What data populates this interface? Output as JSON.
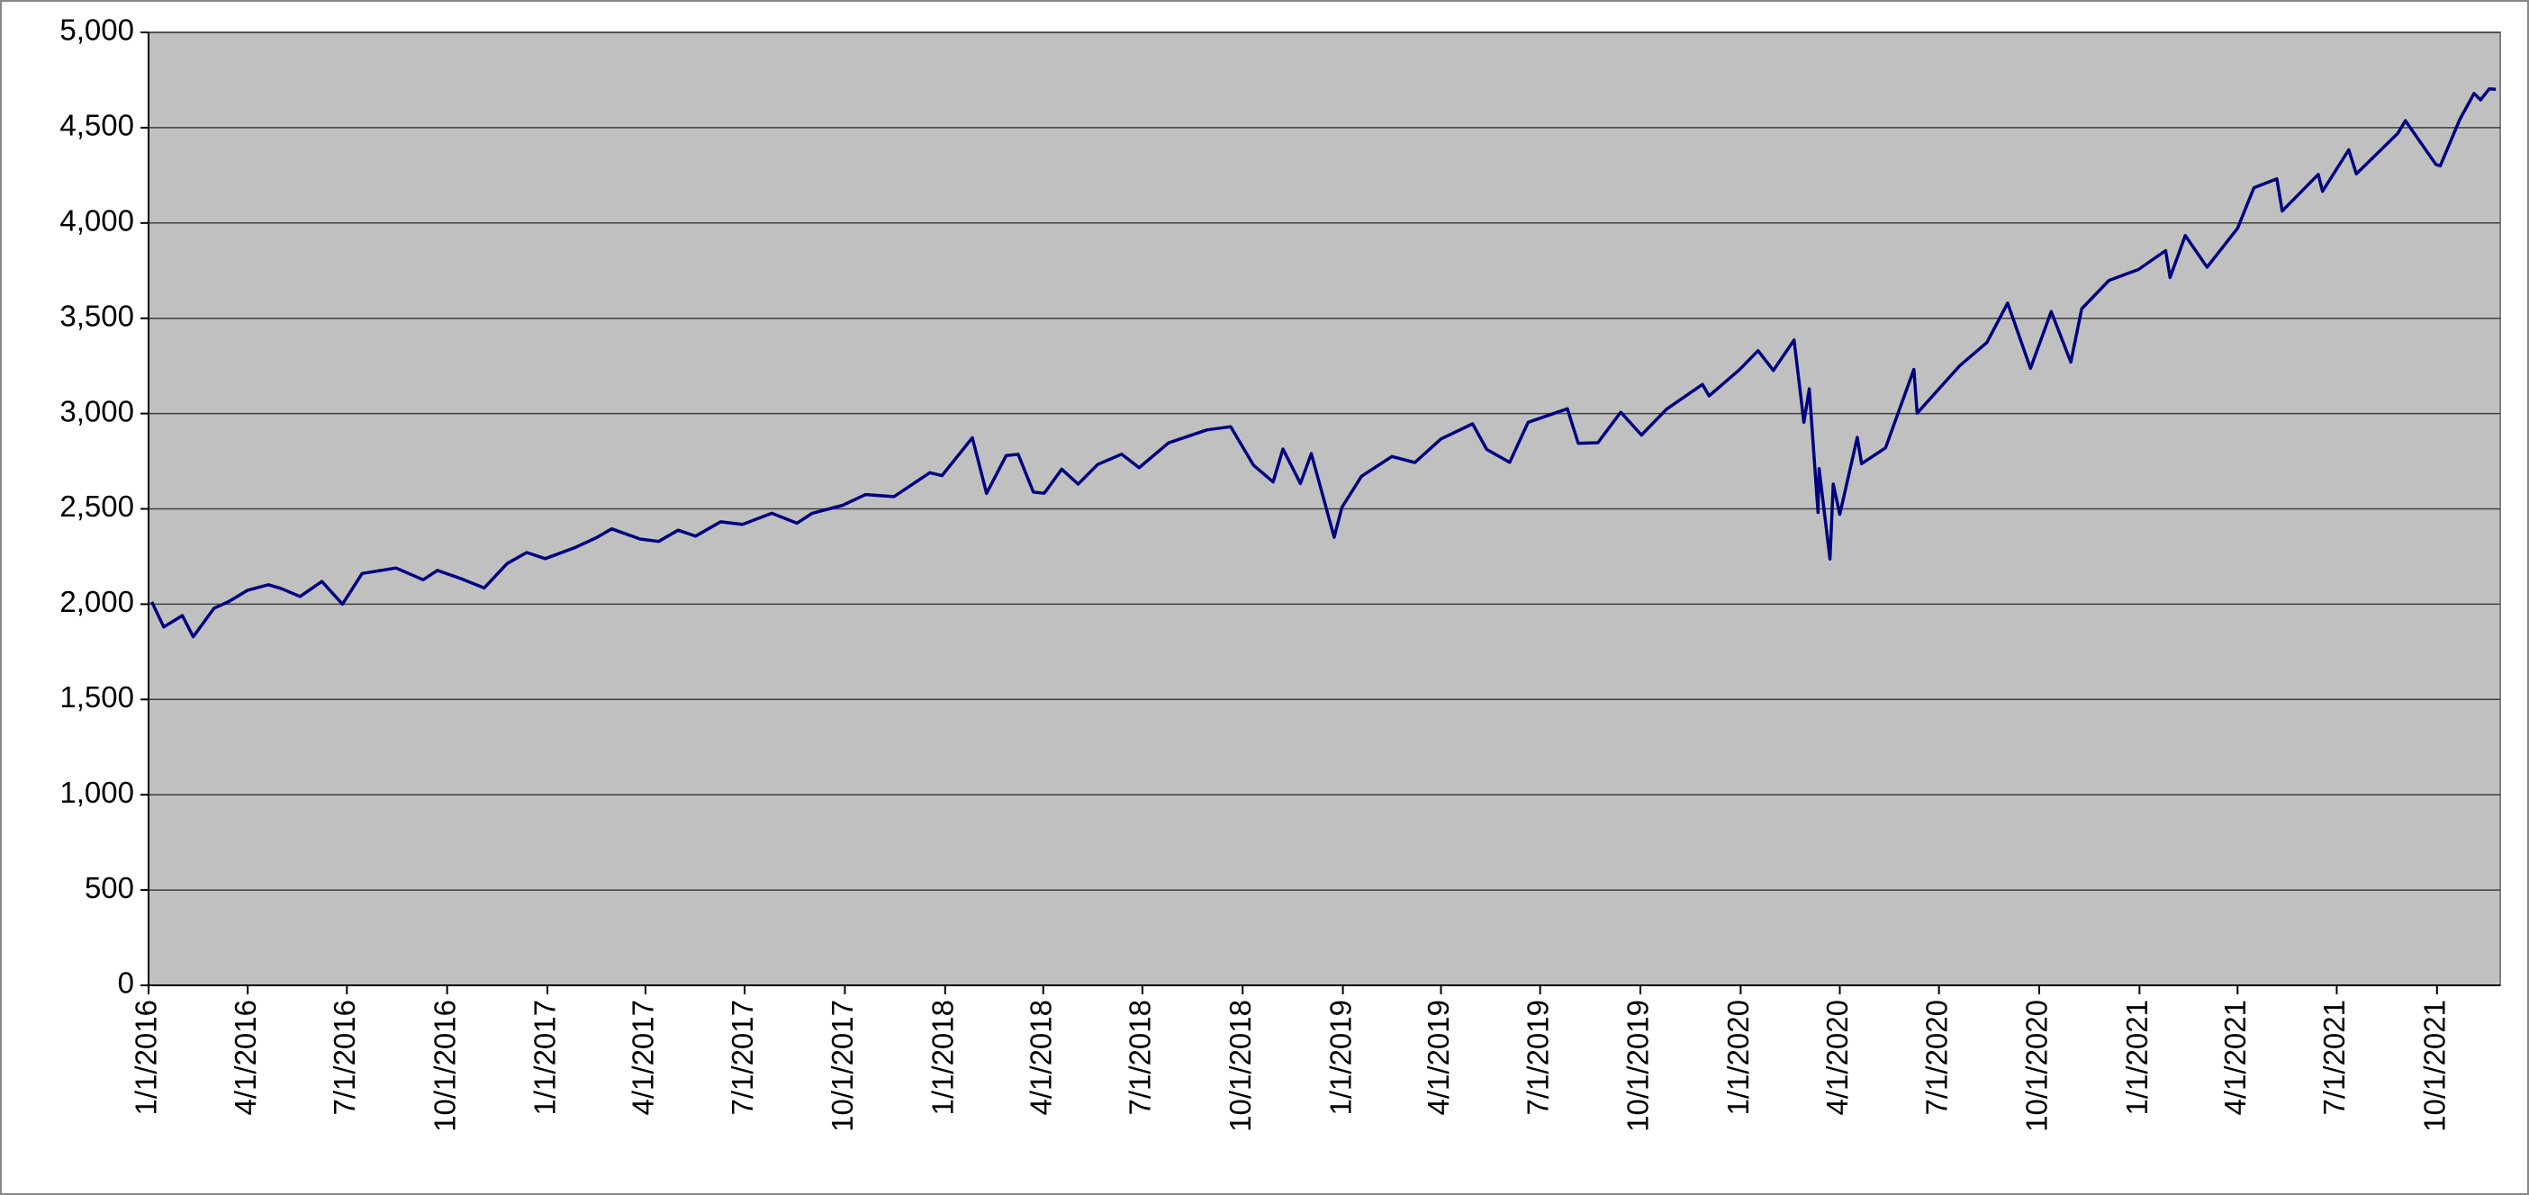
{
  "chart_data": {
    "type": "line",
    "x": [
      "1/4/2016",
      "1/15/2016",
      "2/1/2016",
      "2/11/2016",
      "3/1/2016",
      "3/15/2016",
      "4/1/2016",
      "4/20/2016",
      "5/2/2016",
      "5/19/2016",
      "6/8/2016",
      "6/27/2016",
      "7/15/2016",
      "8/15/2016",
      "9/9/2016",
      "9/22/2016",
      "10/14/2016",
      "11/4/2016",
      "11/25/2016",
      "12/13/2016",
      "12/30/2016",
      "1/26/2017",
      "2/15/2017",
      "3/1/2017",
      "3/27/2017",
      "4/13/2017",
      "5/1/2017",
      "5/17/2017",
      "6/9/2017",
      "6/29/2017",
      "7/26/2017",
      "8/18/2017",
      "9/1/2017",
      "9/29/2017",
      "10/20/2017",
      "11/15/2017",
      "12/18/2017",
      "12/29/2017",
      "1/26/2018",
      "2/8/2018",
      "2/26/2018",
      "3/9/2018",
      "3/23/2018",
      "4/2/2018",
      "4/18/2018",
      "5/3/2018",
      "5/21/2018",
      "6/12/2018",
      "6/28/2018",
      "7/25/2018",
      "8/29/2018",
      "9/20/2018",
      "10/11/2018",
      "10/29/2018",
      "11/7/2018",
      "11/23/2018",
      "12/3/2018",
      "12/24/2018",
      "12/31/2018",
      "1/18/2019",
      "2/15/2019",
      "3/8/2019",
      "4/1/2019",
      "4/30/2019",
      "5/13/2019",
      "6/3/2019",
      "6/20/2019",
      "7/26/2019",
      "8/5/2019",
      "8/23/2019",
      "9/13/2019",
      "10/2/2019",
      "10/25/2019",
      "11/27/2019",
      "12/3/2019",
      "12/31/2019",
      "1/17/2020",
      "1/31/2020",
      "2/19/2020",
      "2/28/2020",
      "3/4/2020",
      "3/12/2020",
      "3/13/2020",
      "3/23/2020",
      "3/26/2020",
      "4/1/2020",
      "4/17/2020",
      "4/21/2020",
      "5/13/2020",
      "6/8/2020",
      "6/11/2020",
      "7/20/2020",
      "8/14/2020",
      "9/2/2020",
      "9/23/2020",
      "10/12/2020",
      "10/30/2020",
      "11/9/2020",
      "12/4/2020",
      "12/31/2020",
      "1/25/2021",
      "1/29/2021",
      "2/12/2021",
      "3/4/2021",
      "4/1/2021",
      "4/16/2021",
      "5/7/2021",
      "5/12/2021",
      "6/14/2021",
      "6/18/2021",
      "7/12/2021",
      "7/19/2021",
      "8/26/2021",
      "9/2/2021",
      "9/30/2021",
      "10/4/2021",
      "10/22/2021",
      "11/4/2021",
      "11/10/2021",
      "11/18/2021",
      "11/24/2021"
    ],
    "values": [
      2012,
      1880,
      1940,
      1829,
      1978,
      2015,
      2073,
      2102,
      2081,
      2040,
      2119,
      2000,
      2161,
      2190,
      2128,
      2177,
      2133,
      2085,
      2213,
      2271,
      2239,
      2296,
      2349,
      2395,
      2342,
      2329,
      2388,
      2357,
      2432,
      2419,
      2477,
      2425,
      2477,
      2519,
      2575,
      2564,
      2690,
      2674,
      2873,
      2581,
      2780,
      2786,
      2588,
      2582,
      2708,
      2630,
      2733,
      2787,
      2716,
      2846,
      2914,
      2931,
      2729,
      2641,
      2814,
      2633,
      2790,
      2351,
      2507,
      2671,
      2775,
      2743,
      2867,
      2946,
      2812,
      2744,
      2954,
      3025,
      2844,
      2847,
      3007,
      2887,
      3023,
      3153,
      3093,
      3231,
      3330,
      3226,
      3386,
      2954,
      3130,
      2481,
      2711,
      2237,
      2630,
      2471,
      2875,
      2737,
      2820,
      3232,
      3002,
      3251,
      3373,
      3580,
      3237,
      3535,
      3270,
      3550,
      3699,
      3756,
      3855,
      3714,
      3934,
      3768,
      3972,
      4185,
      4232,
      4063,
      4255,
      4166,
      4384,
      4258,
      4470,
      4537,
      4307,
      4300,
      4544,
      4680,
      4646,
      4704,
      4701
    ],
    "color": "#000080",
    "xlim": [
      "1/1/2016",
      "11/28/2021"
    ],
    "xticks": [
      "1/1/2016",
      "4/1/2016",
      "7/1/2016",
      "10/1/2016",
      "1/1/2017",
      "4/1/2017",
      "7/1/2017",
      "10/1/2017",
      "1/1/2018",
      "4/1/2018",
      "7/1/2018",
      "10/1/2018",
      "1/1/2019",
      "4/1/2019",
      "7/1/2019",
      "10/1/2019",
      "1/1/2020",
      "4/1/2020",
      "7/1/2020",
      "10/1/2020",
      "1/1/2021",
      "4/1/2021",
      "7/1/2021",
      "10/1/2021"
    ],
    "ylim": [
      0,
      5000
    ],
    "yticks": [
      0,
      500,
      {
        "value": 1000,
        "label": "1,000"
      },
      {
        "value": 1500,
        "label": "1,500"
      },
      {
        "value": 2000,
        "label": "2,000"
      },
      {
        "value": 2500,
        "label": "2,500"
      },
      {
        "value": 3000,
        "label": "3,000"
      },
      {
        "value": 3500,
        "label": "3,500"
      },
      {
        "value": 4000,
        "label": "4,000"
      },
      {
        "value": 4500,
        "label": "4,500"
      },
      {
        "value": 5000,
        "label": "5,000"
      }
    ],
    "grid": true
  }
}
